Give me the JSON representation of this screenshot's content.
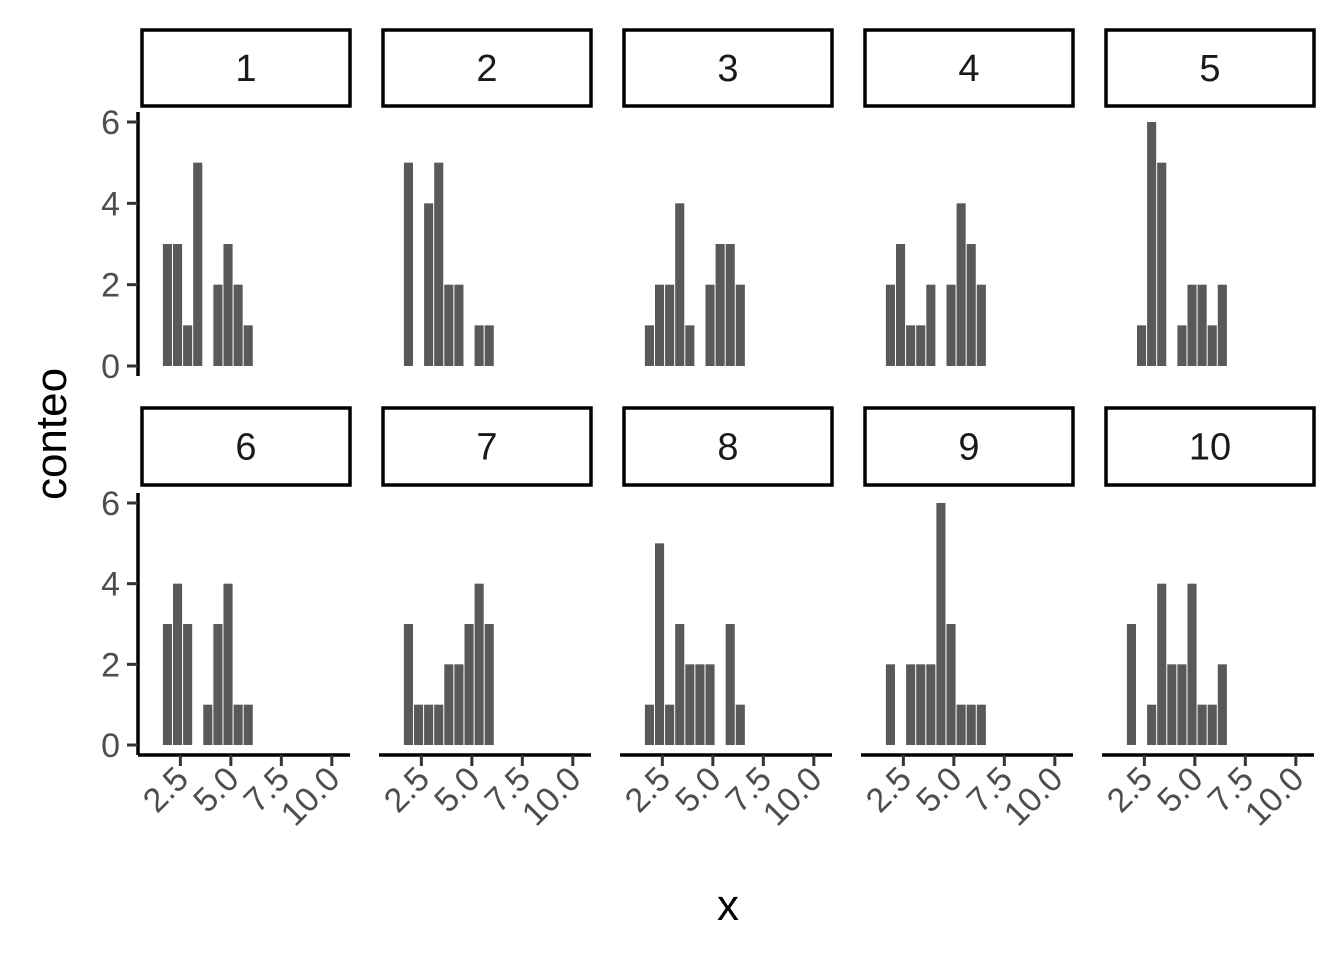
{
  "chart_data": {
    "type": "bar",
    "subtype": "faceted-histogram",
    "xlabel": "x",
    "ylabel": "conteo",
    "ylim": [
      0,
      6
    ],
    "y_ticks": [
      "0",
      "2",
      "4",
      "6"
    ],
    "y_tick_values": [
      0,
      2,
      4,
      6
    ],
    "x_ticks": [
      "2.5",
      "5.0",
      "7.5",
      "10.0"
    ],
    "x_tick_values": [
      2.5,
      5.0,
      7.5,
      10.0
    ],
    "x_range": [
      0.6,
      10.9
    ],
    "bin_centers": [
      1.36,
      1.86,
      2.36,
      2.86,
      3.36,
      3.86,
      4.36,
      4.86,
      5.36,
      5.86,
      6.36,
      6.86,
      7.36,
      7.86,
      8.36,
      8.86,
      9.36,
      9.86,
      10.36
    ],
    "bin_width": 0.5,
    "grid": false,
    "legend": "none",
    "bar_color": "#595959",
    "facets": [
      {
        "label": "1",
        "values": [
          0,
          3,
          3,
          1,
          5,
          0,
          2,
          3,
          2,
          1,
          0,
          0,
          0,
          0,
          0,
          0,
          0,
          0,
          0
        ]
      },
      {
        "label": "2",
        "values": [
          0,
          5,
          0,
          4,
          5,
          2,
          2,
          0,
          1,
          1,
          0,
          0,
          0,
          0,
          0,
          0,
          0,
          0,
          0
        ]
      },
      {
        "label": "3",
        "values": [
          0,
          1,
          2,
          2,
          4,
          1,
          0,
          2,
          3,
          3,
          2,
          0,
          0,
          0,
          0,
          0,
          0,
          0,
          0
        ]
      },
      {
        "label": "4",
        "values": [
          0,
          2,
          3,
          1,
          1,
          2,
          0,
          2,
          4,
          3,
          2,
          0,
          0,
          0,
          0,
          0,
          0,
          0,
          0
        ]
      },
      {
        "label": "5",
        "values": [
          0,
          0,
          1,
          6,
          5,
          0,
          1,
          2,
          2,
          1,
          2,
          0,
          0,
          0,
          0,
          0,
          0,
          0,
          0
        ]
      },
      {
        "label": "6",
        "values": [
          0,
          3,
          4,
          3,
          0,
          1,
          3,
          4,
          1,
          1,
          0,
          0,
          0,
          0,
          0,
          0,
          0,
          0,
          0
        ]
      },
      {
        "label": "7",
        "values": [
          0,
          3,
          1,
          1,
          1,
          2,
          2,
          3,
          4,
          3,
          0,
          0,
          0,
          0,
          0,
          0,
          0,
          0,
          0
        ]
      },
      {
        "label": "8",
        "values": [
          0,
          1,
          5,
          1,
          3,
          2,
          2,
          2,
          0,
          3,
          1,
          0,
          0,
          0,
          0,
          0,
          0,
          0,
          0
        ]
      },
      {
        "label": "9",
        "values": [
          0,
          2,
          0,
          2,
          2,
          2,
          6,
          3,
          1,
          1,
          1,
          0,
          0,
          0,
          0,
          0,
          0,
          0,
          0
        ]
      },
      {
        "label": "10",
        "values": [
          0,
          3,
          0,
          1,
          4,
          2,
          2,
          4,
          1,
          1,
          2,
          0,
          0,
          0,
          0,
          0,
          0,
          0,
          0
        ]
      }
    ]
  }
}
